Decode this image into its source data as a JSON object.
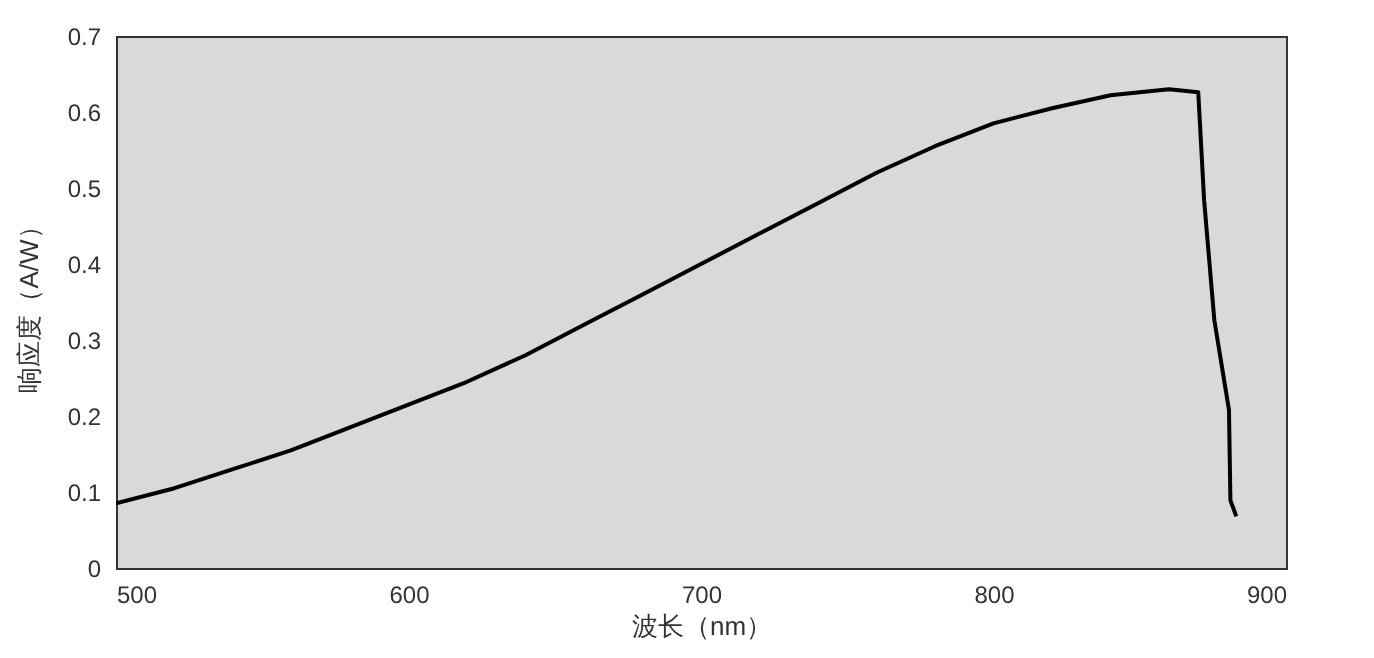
{
  "chart_data": {
    "type": "line",
    "xlabel": "波长（nm）",
    "ylabel": "响应度（A/W）",
    "x": [
      500,
      520,
      540,
      560,
      580,
      600,
      620,
      640,
      660,
      680,
      700,
      720,
      740,
      760,
      780,
      800,
      820,
      840,
      860,
      870,
      872,
      875.5,
      880.5,
      881,
      883
    ],
    "series": [
      {
        "color": "#000000",
        "values": [
          0.085,
          0.105,
          0.13,
          0.155,
          0.185,
          0.215,
          0.245,
          0.28,
          0.32,
          0.36,
          0.4,
          0.44,
          0.48,
          0.52,
          0.555,
          0.585,
          0.605,
          0.622,
          0.63,
          0.626,
          0.484,
          0.326,
          0.208,
          0.089,
          0.068
        ]
      }
    ],
    "xlim": [
      500,
      900
    ],
    "xticks": [
      500,
      600,
      700,
      800,
      900
    ],
    "ylim": [
      0,
      0.7
    ],
    "yticks": [
      0,
      0.1,
      0.2,
      0.3,
      0.4,
      0.5,
      0.6,
      0.7
    ],
    "grid": false,
    "marker": "none",
    "line_style": "solid"
  }
}
